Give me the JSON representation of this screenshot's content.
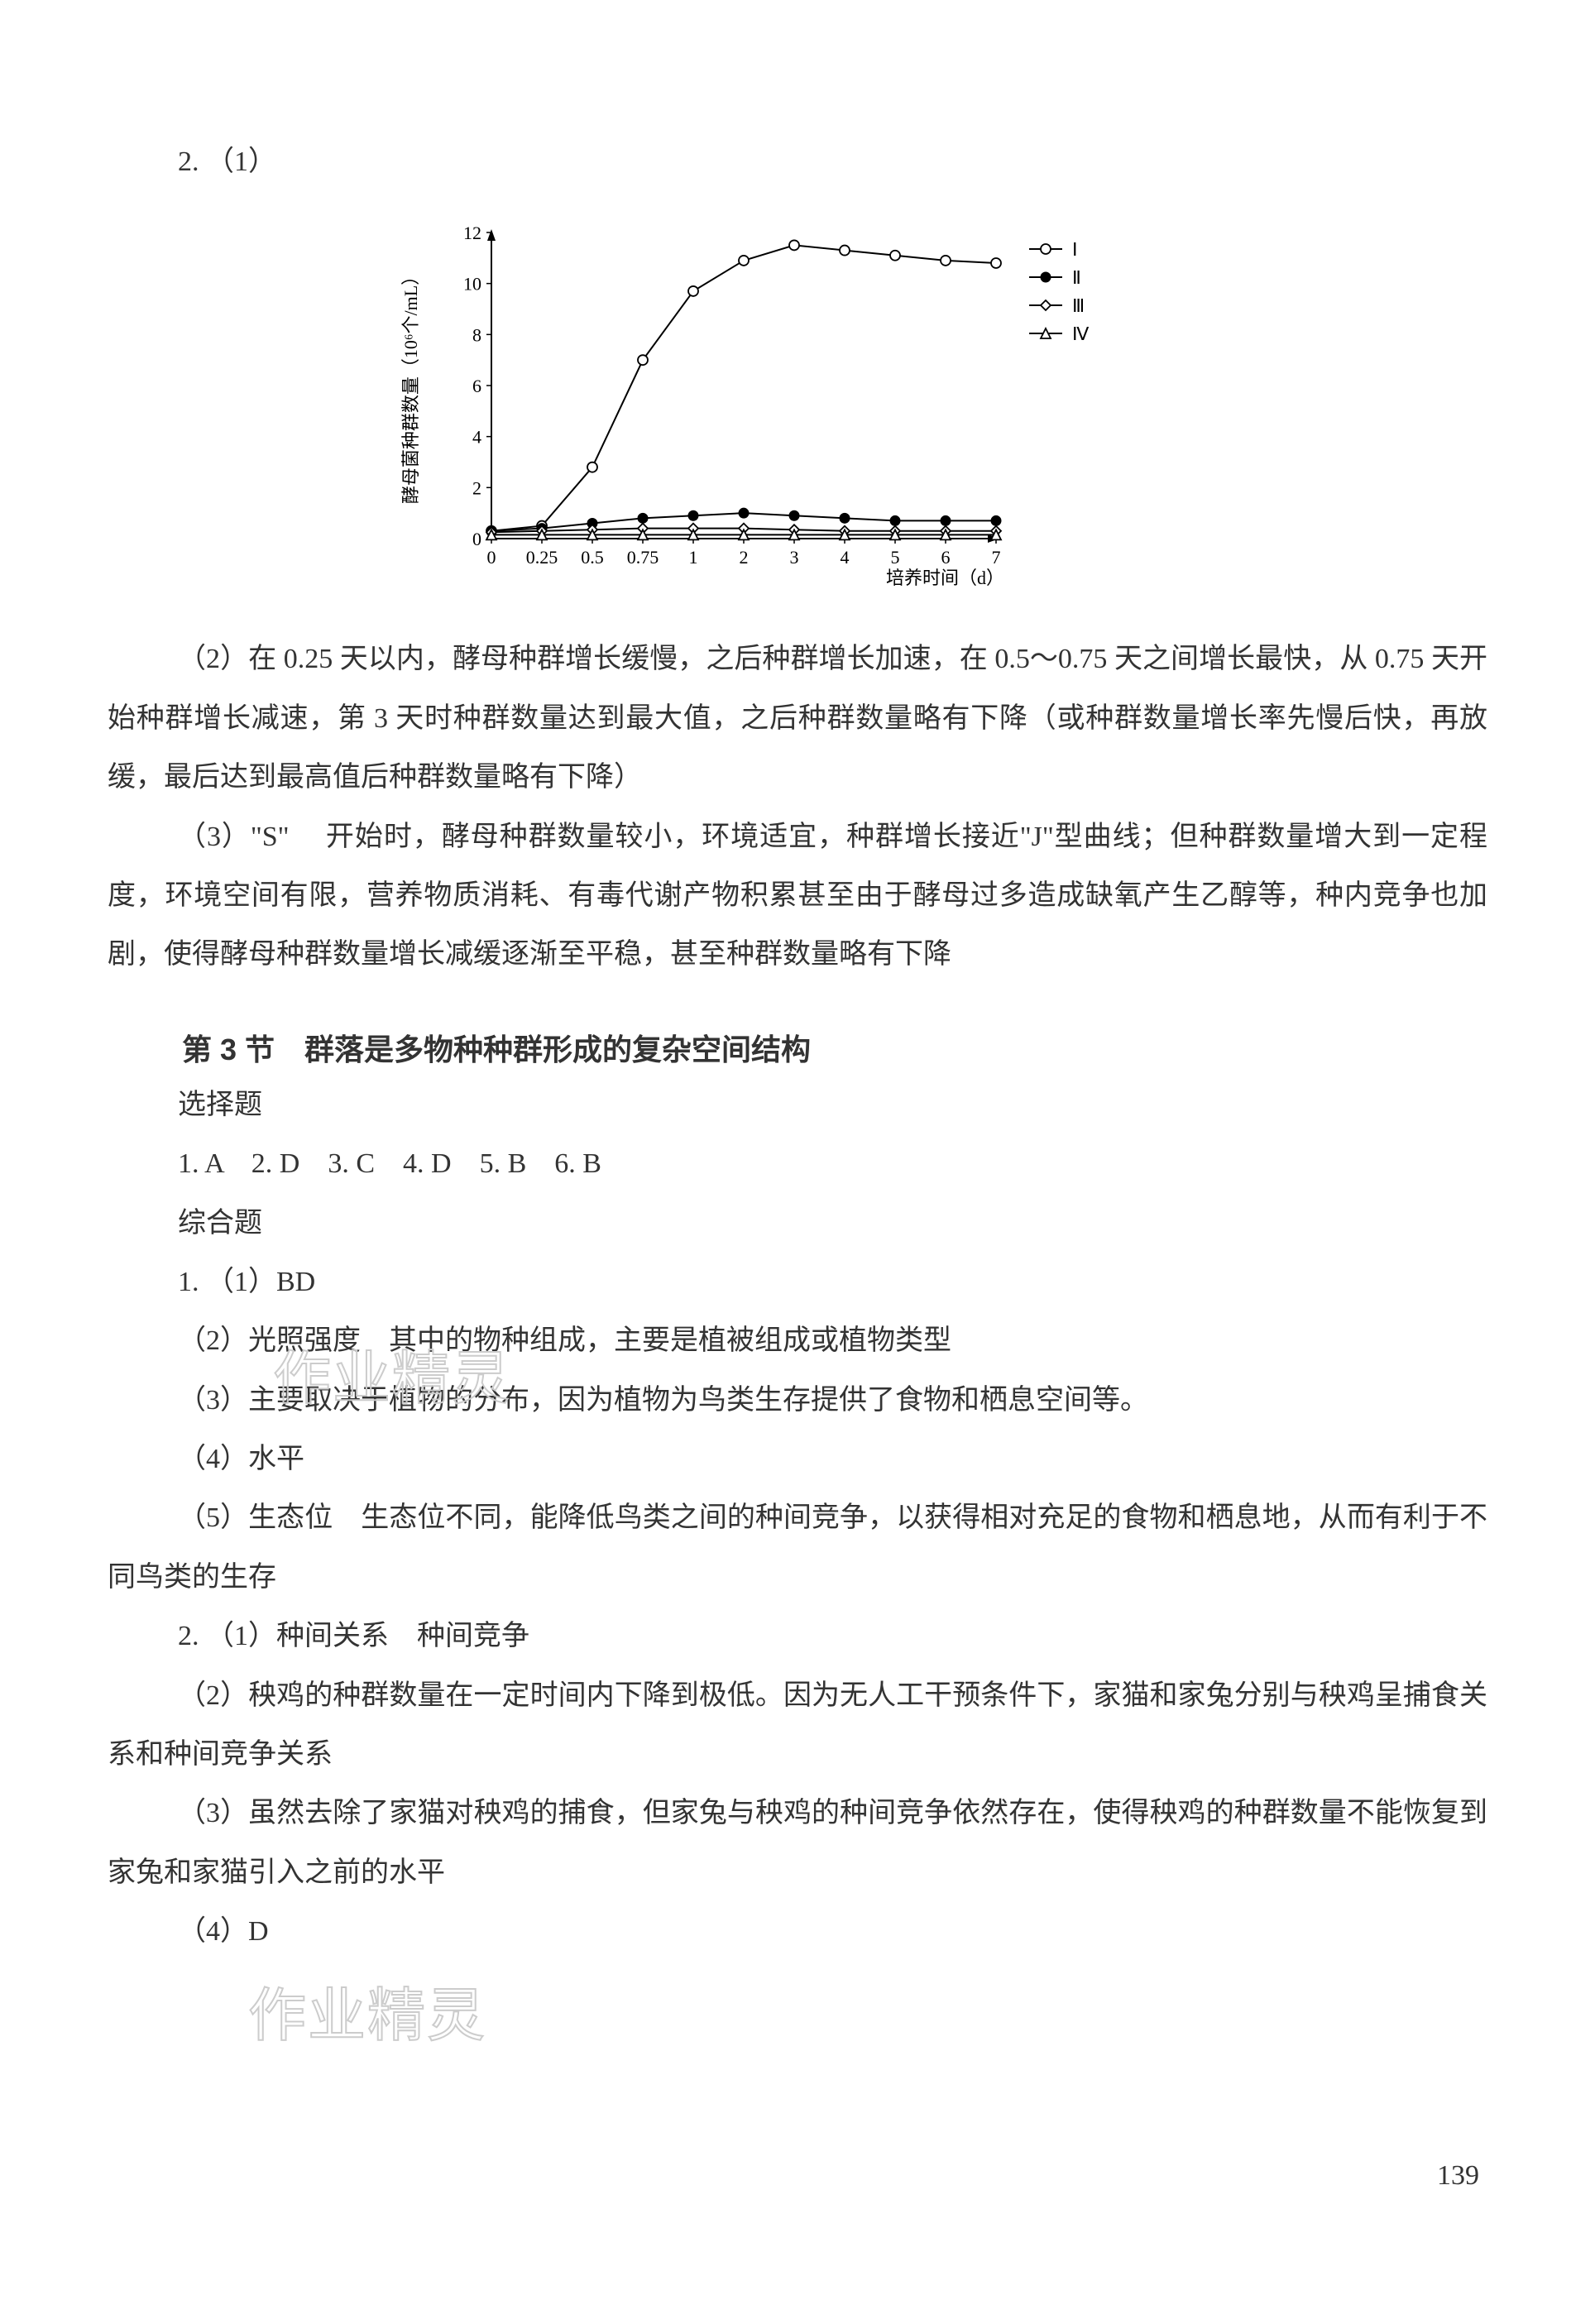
{
  "q2_prefix": "2. （1）",
  "chart": {
    "type": "line",
    "ylabel": "酵母菌种群数量（10⁶个/mL）",
    "xlabel": "培养时间（d）",
    "x_ticks": [
      0,
      0.25,
      0.5,
      0.75,
      1,
      2,
      3,
      4,
      5,
      6,
      7
    ],
    "x_tick_labels": [
      "0",
      "0.25",
      "0.5",
      "0.75",
      "1",
      "2",
      "3",
      "4",
      "5",
      "6",
      "7"
    ],
    "y_ticks": [
      0,
      2,
      4,
      6,
      8,
      10,
      12
    ],
    "ylim": [
      0,
      12
    ],
    "legend": [
      {
        "label": "Ⅰ",
        "marker": "circle-open",
        "color": "#000000"
      },
      {
        "label": "Ⅱ",
        "marker": "circle-filled",
        "color": "#000000"
      },
      {
        "label": "Ⅲ",
        "marker": "diamond-open",
        "color": "#000000"
      },
      {
        "label": "Ⅳ",
        "marker": "triangle-open",
        "color": "#000000"
      }
    ],
    "series": {
      "I": [
        0.3,
        0.5,
        2.8,
        7.0,
        9.7,
        10.9,
        11.5,
        11.3,
        11.1,
        10.9,
        10.8
      ],
      "II": [
        0.3,
        0.4,
        0.6,
        0.8,
        0.9,
        1.0,
        0.9,
        0.8,
        0.7,
        0.7,
        0.7
      ],
      "III": [
        0.25,
        0.3,
        0.35,
        0.4,
        0.4,
        0.4,
        0.35,
        0.3,
        0.3,
        0.3,
        0.3
      ],
      "IV": [
        0.15,
        0.15,
        0.15,
        0.15,
        0.15,
        0.15,
        0.15,
        0.15,
        0.15,
        0.15,
        0.15
      ]
    },
    "line_color": "#000000",
    "line_width": 2,
    "marker_size": 6,
    "background_color": "#ffffff",
    "axis_color": "#000000",
    "label_fontsize": 22,
    "tick_fontsize": 22
  },
  "q2_2": "（2）在 0.25 天以内，酵母种群增长缓慢，之后种群增长加速，在 0.5～0.75 天之间增长最快，从 0.75 天开始种群增长减速，第 3 天时种群数量达到最大值，之后种群数量略有下降（或种群数量增长率先慢后快，再放缓，最后达到最高值后种群数量略有下降）",
  "q2_3": "（3）\"S\" 　开始时，酵母种群数量较小，环境适宜，种群增长接近\"J\"型曲线；但种群数量增大到一定程度，环境空间有限，营养物质消耗、有毒代谢产物积累甚至由于酵母过多造成缺氧产生乙醇等，种内竞争也加剧，使得酵母种群数量增长减缓逐渐至平稳，甚至种群数量略有下降",
  "section3_title": "第 3 节　群落是多物种种群形成的复杂空间结构",
  "choice_label": "选择题",
  "choice_answers": "1. A　2. D　3. C　4. D　5. B　6. B",
  "comprehensive_label": "综合题",
  "c1_1": "1. （1）BD",
  "c1_2": "（2）光照强度　其中的物种组成，主要是植被组成或植物类型",
  "c1_3": "（3）主要取决于植物的分布，因为植物为鸟类生存提供了食物和栖息空间等。",
  "c1_4": "（4）水平",
  "c1_5": "（5）生态位　生态位不同，能降低鸟类之间的种间竞争，以获得相对充足的食物和栖息地，从而有利于不同鸟类的生存",
  "c2_1": "2. （1）种间关系　种间竞争",
  "c2_2": "（2）秧鸡的种群数量在一定时间内下降到极低。因为无人工干预条件下，家猫和家兔分别与秧鸡呈捕食关系和种间竞争关系",
  "c2_3": "（3）虽然去除了家猫对秧鸡的捕食，但家兔与秧鸡的种间竞争依然存在，使得秧鸡的种群数量不能恢复到家兔和家猫引入之前的水平",
  "c2_4": "（4）D",
  "watermark_text": "作业精灵",
  "page_number": "139"
}
